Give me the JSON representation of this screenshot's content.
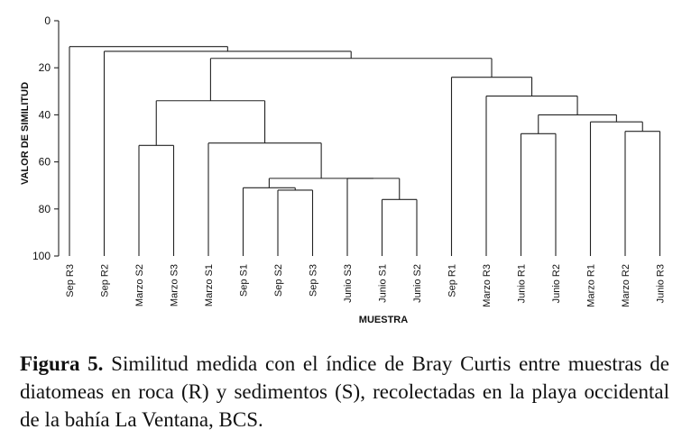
{
  "chart_data": {
    "type": "dendrogram",
    "ylabel": "VALOR DE SIMILITUD",
    "xlabel": "MUESTRA",
    "ylim": [
      0,
      100
    ],
    "yticks": [
      "0",
      "20",
      "40",
      "60",
      "80",
      "100"
    ],
    "leaves": [
      "Sep R3",
      "Sep R2",
      "Marzo S2",
      "Marzo S3",
      "Marzo S1",
      "Sep S1",
      "Sep S2",
      "Sep S3",
      "Junio S3",
      "Junio S1",
      "Junio S2",
      "Sep R1",
      "Marzo R3",
      "Junio R1",
      "Junio R2",
      "Marzo R1",
      "Marzo R2",
      "Junio R3"
    ],
    "merges": [
      {
        "members": [
          "Sep S2",
          "Sep S3"
        ],
        "similarity": 72
      },
      {
        "members": [
          "Sep S1",
          "Sep S2 + Sep S3"
        ],
        "similarity": 71
      },
      {
        "members": [
          "Junio S1",
          "Junio S2"
        ],
        "similarity": 76
      },
      {
        "members": [
          "Junio S3",
          "Junio S1 + Junio S2"
        ],
        "similarity": 67
      },
      {
        "members": [
          "Sep S1-S3",
          "Junio S1-S3"
        ],
        "similarity": 67
      },
      {
        "members": [
          "Marzo S1",
          "Sep/Junio S"
        ],
        "similarity": 52
      },
      {
        "members": [
          "Marzo S2",
          "Marzo S3"
        ],
        "similarity": 53
      },
      {
        "members": [
          "Marzo S2 + Marzo S3",
          "Marzo S1 cluster"
        ],
        "similarity": 34
      },
      {
        "members": [
          "Junio R1",
          "Junio R2"
        ],
        "similarity": 48
      },
      {
        "members": [
          "Marzo R2",
          "Junio R3"
        ],
        "similarity": 47
      },
      {
        "members": [
          "Marzo R1",
          "Marzo R2 + Junio R3"
        ],
        "similarity": 43
      },
      {
        "members": [
          "Junio R1 + Junio R2",
          "Marzo R1 cluster"
        ],
        "similarity": 40
      },
      {
        "members": [
          "Marzo R3",
          "Junio/Marzo R cluster"
        ],
        "similarity": 32
      },
      {
        "members": [
          "Sep R1",
          "Marzo R3 cluster"
        ],
        "similarity": 24
      },
      {
        "members": [
          "Sediment cluster",
          "Rock cluster"
        ],
        "similarity": 16
      },
      {
        "members": [
          "Sep R2",
          "Main cluster"
        ],
        "similarity": 13
      },
      {
        "members": [
          "Sep R3",
          "All others"
        ],
        "similarity": 11
      }
    ]
  },
  "caption": {
    "label": "Figura 5.",
    "text": " Similitud medida con el índice de Bray Curtis entre muestras de diatomeas en roca (R) y sedimentos (S), recolectadas en la playa occidental de la bahía La Ventana, BCS."
  }
}
